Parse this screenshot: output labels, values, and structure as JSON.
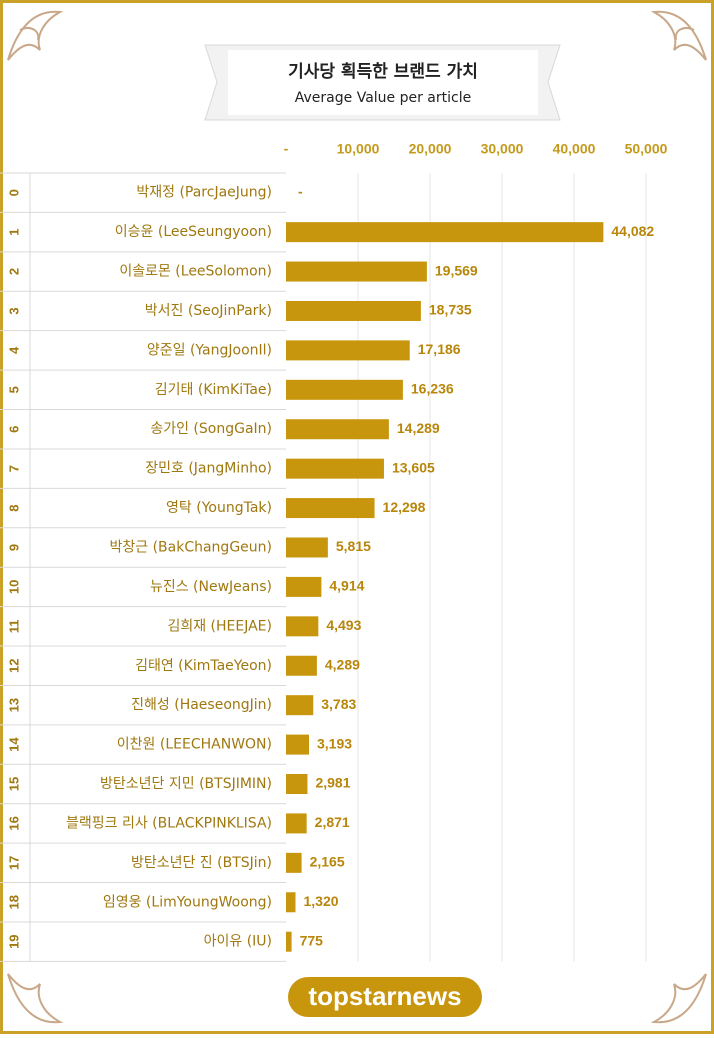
{
  "chart_data": {
    "type": "bar",
    "orientation": "horizontal",
    "title": "기사당 획득한 브랜드 가치",
    "subtitle": "Average Value per article",
    "ranks": [
      0,
      1,
      2,
      3,
      4,
      5,
      6,
      7,
      8,
      9,
      10,
      11,
      12,
      13,
      14,
      15,
      16,
      17,
      18,
      19
    ],
    "categories": [
      "박재정 (ParcJaeJung)",
      "이승윤 (LeeSeungyoon)",
      "이솔로몬 (LeeSolomon)",
      "박서진 (SeoJinPark)",
      "양준일 (YangJoonIl)",
      "김기태 (KimKiTae)",
      "송가인 (SongGaIn)",
      "장민호 (JangMinho)",
      "영탁 (YoungTak)",
      "박창근 (BakChangGeun)",
      "뉴진스 (NewJeans)",
      "김희재 (HEEJAE)",
      "김태연 (KimTaeYeon)",
      "진해성 (HaeseongJin)",
      "이찬원 (LEECHANWON)",
      "방탄소년단 지민 (BTSJIMIN)",
      "블랙핑크 리사 (BLACKPINKLISA)",
      "방탄소년단 진 (BTSJin)",
      "임영웅 (LimYoungWoong)",
      "아이유 (IU)"
    ],
    "values": [
      0,
      44082,
      19569,
      18735,
      17186,
      16236,
      14289,
      13605,
      12298,
      5815,
      4914,
      4493,
      4289,
      3783,
      3193,
      2981,
      2871,
      2165,
      1320,
      775
    ],
    "value_labels": [
      "-",
      "44,082",
      "19,569",
      "18,735",
      "17,186",
      "16,236",
      "14,289",
      "13,605",
      "12,298",
      "5,815",
      "4,914",
      "4,493",
      "4,289",
      "3,783",
      "3,193",
      "2,981",
      "2,871",
      "2,165",
      "1,320",
      "775"
    ],
    "color": "#c8960c",
    "xlim": [
      0,
      50000
    ],
    "xticks": [
      {
        "value": 0,
        "label": "-"
      },
      {
        "value": 10000,
        "label": "10,000"
      },
      {
        "value": 20000,
        "label": "20,000"
      },
      {
        "value": 30000,
        "label": "30,000"
      },
      {
        "value": 40000,
        "label": "40,000"
      },
      {
        "value": 50000,
        "label": "50,000"
      }
    ],
    "grid": true
  },
  "logo": "topstarnews"
}
